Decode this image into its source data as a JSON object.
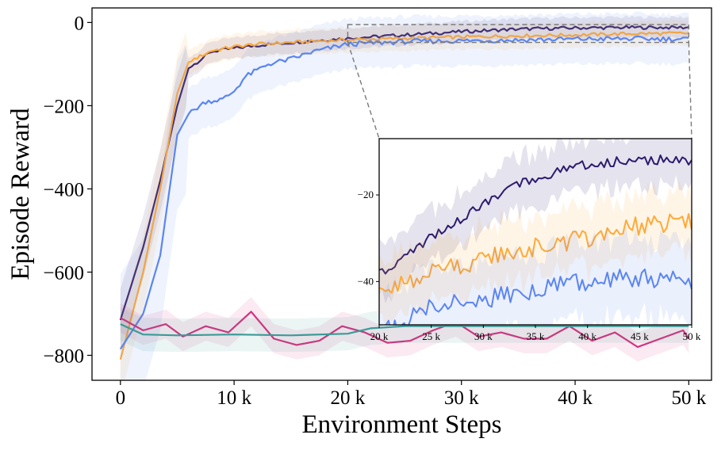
{
  "chart_data": {
    "type": "line",
    "title": "",
    "xlabel": "Environment Steps",
    "ylabel": "Episode Reward",
    "xlim": [
      -2500,
      52000
    ],
    "ylim": [
      -860,
      35
    ],
    "xticks": [
      0,
      10000,
      20000,
      30000,
      40000,
      50000
    ],
    "xtick_labels": [
      "0",
      "10 k",
      "20 k",
      "30 k",
      "40 k",
      "50 k"
    ],
    "yticks": [
      0,
      -200,
      -400,
      -600,
      -800
    ],
    "ytick_labels": [
      "0",
      "−200",
      "−400",
      "−600",
      "−800"
    ],
    "grid": false,
    "legend": "none",
    "colors": {
      "dark_purple": "#2d1b6e",
      "orange": "#ffa938",
      "blue": "#5b85f0",
      "magenta": "#d62f7e",
      "teal": "#3c9a98",
      "zoom_box": "#7a7a7a"
    },
    "series": [
      {
        "color_key": "dark_purple",
        "x": [
          0,
          2000,
          3500,
          5000,
          6000,
          8000,
          10000,
          12000,
          15000,
          18000,
          20000,
          25000,
          30000,
          35000,
          40000,
          45000,
          50000
        ],
        "values": [
          -715,
          -540,
          -380,
          -200,
          -110,
          -70,
          -62,
          -55,
          -48,
          -42,
          -38,
          -30,
          -22,
          -16,
          -13,
          -12,
          -12
        ],
        "band": 25
      },
      {
        "color_key": "orange",
        "x": [
          0,
          2000,
          3500,
          5000,
          6000,
          8000,
          10000,
          12000,
          15000,
          18000,
          20000,
          25000,
          30000,
          35000,
          40000,
          45000,
          50000
        ],
        "values": [
          -810,
          -600,
          -400,
          -170,
          -95,
          -68,
          -58,
          -52,
          -48,
          -44,
          -42,
          -38,
          -35,
          -32,
          -30,
          -27,
          -26
        ],
        "band": 30
      },
      {
        "color_key": "blue",
        "x": [
          0,
          2000,
          3500,
          5000,
          6000,
          7500,
          9000,
          10000,
          11000,
          13000,
          15000,
          17000,
          20000,
          25000,
          30000,
          35000,
          40000,
          45000,
          50000
        ],
        "values": [
          -785,
          -700,
          -560,
          -270,
          -220,
          -190,
          -185,
          -165,
          -130,
          -100,
          -88,
          -70,
          -52,
          -46,
          -44,
          -42,
          -40,
          -39,
          -40
        ],
        "band": 60
      },
      {
        "color_key": "magenta",
        "x": [
          0,
          2000,
          4000,
          5500,
          7500,
          9500,
          11500,
          13500,
          15500,
          17500,
          19500,
          21500,
          23500,
          25500,
          27500,
          29500,
          31500,
          33500,
          35500,
          37500,
          39500,
          41500,
          43500,
          45500,
          47500,
          49500,
          50000
        ],
        "values": [
          -710,
          -740,
          -725,
          -755,
          -730,
          -745,
          -695,
          -760,
          -775,
          -765,
          -730,
          -745,
          -770,
          -765,
          -740,
          -720,
          -755,
          -745,
          -760,
          -760,
          -730,
          -765,
          -745,
          -780,
          -760,
          -740,
          -760
        ],
        "band": 35
      },
      {
        "color_key": "teal",
        "x": [
          0,
          2000,
          5000,
          10000,
          15000,
          20000,
          22000,
          25000,
          30000,
          35000,
          40000,
          45000,
          50000
        ],
        "values": [
          -725,
          -750,
          -752,
          -750,
          -752,
          -748,
          -735,
          -730,
          -730,
          -730,
          -730,
          -730,
          -730
        ],
        "band": 40
      }
    ],
    "zoom_region": {
      "xlim": [
        20000,
        50000
      ],
      "ylim": [
        -48,
        -5
      ]
    },
    "inset": {
      "xlim": [
        20000,
        50000
      ],
      "ylim": [
        -50,
        -7
      ],
      "xticks": [
        20000,
        25000,
        30000,
        35000,
        40000,
        45000,
        50000
      ],
      "xtick_labels": [
        "20 k",
        "25 k",
        "30 k",
        "35 k",
        "40 k",
        "45 k",
        "50 k"
      ],
      "yticks": [
        -20,
        -40
      ],
      "ytick_labels": [
        "−20",
        "−40"
      ]
    }
  }
}
